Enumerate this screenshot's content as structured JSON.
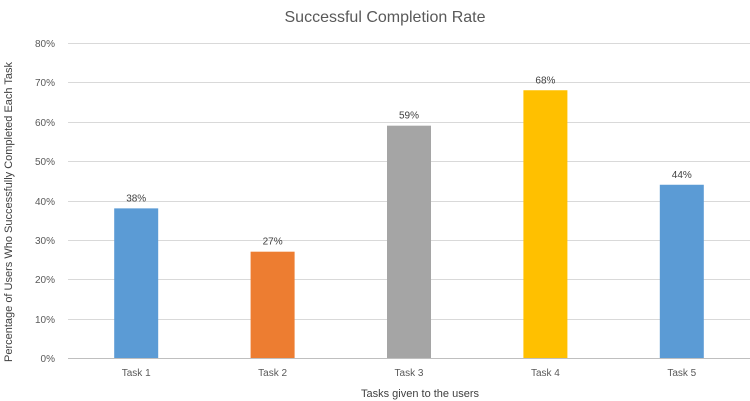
{
  "chart_data": {
    "type": "bar",
    "title": "Successful Completion Rate",
    "xlabel": "Tasks given to the users",
    "ylabel": "Percentage of Users Who Successfully Completed Each Task",
    "categories": [
      "Task 1",
      "Task 2",
      "Task 3",
      "Task 4",
      "Task 5"
    ],
    "values": [
      38,
      27,
      59,
      68,
      44
    ],
    "data_labels": [
      "38%",
      "27%",
      "59%",
      "68%",
      "44%"
    ],
    "colors": [
      "#5B9BD5",
      "#ED7D31",
      "#A5A5A5",
      "#FFC000",
      "#5B9BD5"
    ],
    "ylim": [
      0,
      80
    ],
    "yticks": [
      0,
      10,
      20,
      30,
      40,
      50,
      60,
      70,
      80
    ],
    "ytick_labels": [
      "0%",
      "10%",
      "20%",
      "30%",
      "40%",
      "50%",
      "60%",
      "70%",
      "80%"
    ],
    "grid": true,
    "legend": "none"
  }
}
